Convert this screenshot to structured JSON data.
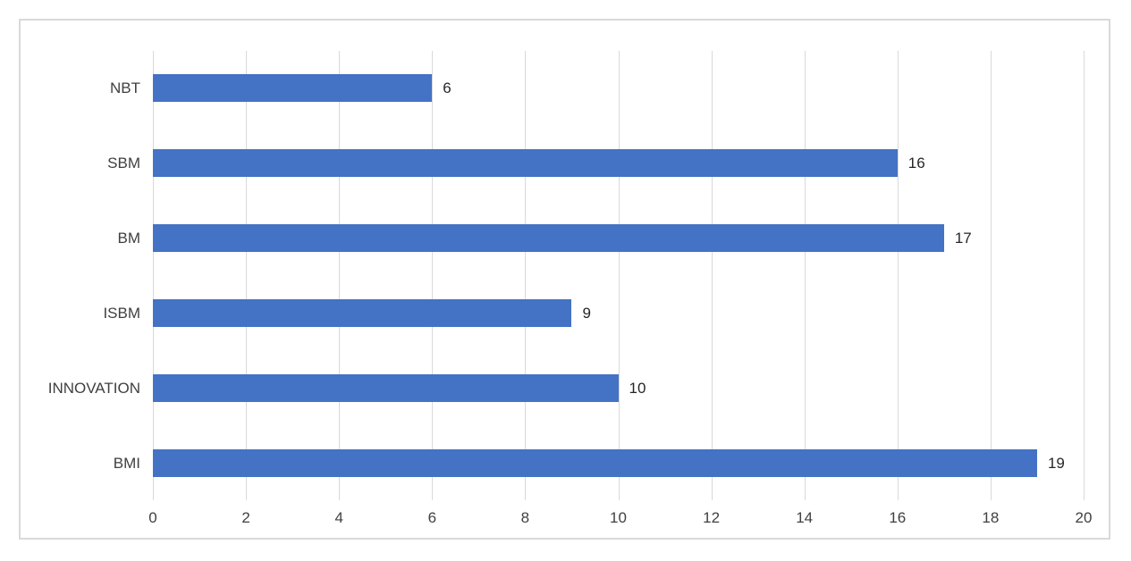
{
  "chart_data": {
    "type": "bar",
    "orientation": "horizontal",
    "title": "",
    "xlabel": "",
    "ylabel": "",
    "categories": [
      "NBT",
      "SBM",
      "BM",
      "ISBM",
      "INNOVATION",
      "BMI"
    ],
    "values": [
      6,
      16,
      17,
      9,
      10,
      19
    ],
    "value_labels": [
      "6",
      "16",
      "17",
      "9",
      "10",
      "19"
    ],
    "xlim": [
      0,
      20
    ],
    "xticks": [
      0,
      2,
      4,
      6,
      8,
      10,
      12,
      14,
      16,
      18,
      20
    ],
    "grid": "vertical-gridlines-on",
    "legend": "none",
    "colors": {
      "bar": "#4472C4",
      "gridline": "#D9D9D9",
      "frame_border": "#D9D9D9",
      "axis_text": "#404040",
      "value_text": "#262626",
      "background": "#FFFFFF"
    }
  }
}
